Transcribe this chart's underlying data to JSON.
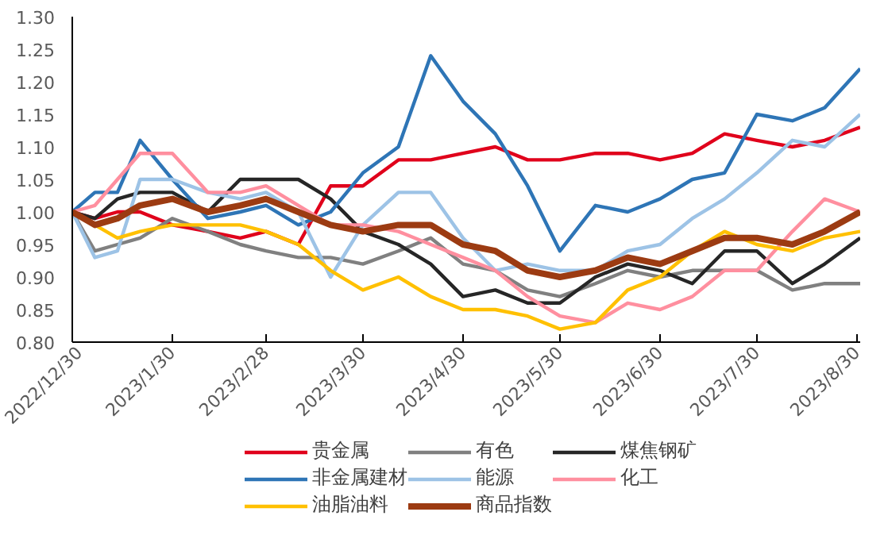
{
  "chart_data": {
    "type": "line",
    "x": [
      "2022-12-30",
      "2023-01-06",
      "2023-01-13",
      "2023-01-20",
      "2023-01-30",
      "2023-02-10",
      "2023-02-20",
      "2023-02-28",
      "2023-03-10",
      "2023-03-20",
      "2023-03-30",
      "2023-04-10",
      "2023-04-20",
      "2023-04-30",
      "2023-05-10",
      "2023-05-20",
      "2023-05-30",
      "2023-06-10",
      "2023-06-20",
      "2023-06-30",
      "2023-07-10",
      "2023-07-20",
      "2023-07-30",
      "2023-08-10",
      "2023-08-20",
      "2023-08-31"
    ],
    "series": [
      {
        "name": "贵金属",
        "color": "#e0001b",
        "values": [
          1.0,
          0.99,
          1.0,
          1.0,
          0.98,
          0.97,
          0.96,
          0.97,
          0.95,
          1.04,
          1.04,
          1.08,
          1.08,
          1.09,
          1.1,
          1.08,
          1.08,
          1.09,
          1.09,
          1.08,
          1.09,
          1.12,
          1.11,
          1.1,
          1.11,
          1.13
        ]
      },
      {
        "name": "有色",
        "color": "#808080",
        "values": [
          1.0,
          0.94,
          0.95,
          0.96,
          0.99,
          0.97,
          0.95,
          0.94,
          0.93,
          0.93,
          0.92,
          0.94,
          0.96,
          0.92,
          0.91,
          0.88,
          0.87,
          0.89,
          0.91,
          0.9,
          0.91,
          0.91,
          0.91,
          0.88,
          0.89,
          0.89
        ]
      },
      {
        "name": "煤焦钢矿",
        "color": "#262626",
        "values": [
          1.0,
          0.99,
          1.02,
          1.03,
          1.03,
          1.0,
          1.05,
          1.05,
          1.05,
          1.02,
          0.97,
          0.95,
          0.92,
          0.87,
          0.88,
          0.86,
          0.86,
          0.9,
          0.92,
          0.91,
          0.89,
          0.94,
          0.94,
          0.89,
          0.92,
          0.96
        ]
      },
      {
        "name": "非金属建材",
        "color": "#2e75b6",
        "values": [
          1.0,
          1.03,
          1.03,
          1.11,
          1.05,
          0.99,
          1.0,
          1.01,
          0.98,
          1.0,
          1.06,
          1.1,
          1.24,
          1.17,
          1.12,
          1.04,
          0.94,
          1.01,
          1.0,
          1.02,
          1.05,
          1.06,
          1.15,
          1.14,
          1.16,
          1.22
        ]
      },
      {
        "name": "能源",
        "color": "#9dc3e6",
        "values": [
          1.0,
          0.93,
          0.94,
          1.05,
          1.05,
          1.03,
          1.02,
          1.03,
          1.0,
          0.9,
          0.98,
          1.03,
          1.03,
          0.96,
          0.91,
          0.92,
          0.91,
          0.91,
          0.94,
          0.95,
          0.99,
          1.02,
          1.06,
          1.11,
          1.1,
          1.15
        ]
      },
      {
        "name": "化工",
        "color": "#ff8f9f",
        "values": [
          1.0,
          1.01,
          1.05,
          1.09,
          1.09,
          1.03,
          1.03,
          1.04,
          1.01,
          0.98,
          0.98,
          0.97,
          0.95,
          0.93,
          0.91,
          0.87,
          0.84,
          0.83,
          0.86,
          0.85,
          0.87,
          0.91,
          0.91,
          0.97,
          1.02,
          1.0
        ]
      },
      {
        "name": "油脂油料",
        "color": "#ffc000",
        "values": [
          1.0,
          0.98,
          0.96,
          0.97,
          0.98,
          0.98,
          0.98,
          0.97,
          0.95,
          0.91,
          0.88,
          0.9,
          0.87,
          0.85,
          0.85,
          0.84,
          0.82,
          0.83,
          0.88,
          0.9,
          0.94,
          0.97,
          0.95,
          0.94,
          0.96,
          0.97
        ]
      },
      {
        "name": "商品指数",
        "color": "#9c3b12",
        "values": [
          1.0,
          0.98,
          0.99,
          1.01,
          1.02,
          1.0,
          1.01,
          1.02,
          1.0,
          0.98,
          0.97,
          0.98,
          0.98,
          0.95,
          0.94,
          0.91,
          0.9,
          0.91,
          0.93,
          0.92,
          0.94,
          0.96,
          0.96,
          0.95,
          0.97,
          1.0
        ]
      }
    ],
    "xlim": [
      "2022-12-30",
      "2023-08-31"
    ],
    "xticks": [
      {
        "value": "2022-12-30",
        "label": "2022/12/30"
      },
      {
        "value": "2023-01-30",
        "label": "2023/1/30"
      },
      {
        "value": "2023-02-28",
        "label": "2023/2/28"
      },
      {
        "value": "2023-03-30",
        "label": "2023/3/30"
      },
      {
        "value": "2023-04-30",
        "label": "2023/4/30"
      },
      {
        "value": "2023-05-30",
        "label": "2023/5/30"
      },
      {
        "value": "2023-06-30",
        "label": "2023/6/30"
      },
      {
        "value": "2023-07-30",
        "label": "2023/7/30"
      },
      {
        "value": "2023-08-30",
        "label": "2023/8/30"
      }
    ],
    "ylim": [
      0.8,
      1.3
    ],
    "yticks": [
      {
        "value": 0.8,
        "label": "0.80"
      },
      {
        "value": 0.85,
        "label": "0.85"
      },
      {
        "value": 0.9,
        "label": "0.90"
      },
      {
        "value": 0.95,
        "label": "0.95"
      },
      {
        "value": 1.0,
        "label": "1.00"
      },
      {
        "value": 1.05,
        "label": "1.05"
      },
      {
        "value": 1.1,
        "label": "1.10"
      },
      {
        "value": 1.15,
        "label": "1.15"
      },
      {
        "value": 1.2,
        "label": "1.20"
      },
      {
        "value": 1.25,
        "label": "1.25"
      },
      {
        "value": 1.3,
        "label": "1.30"
      }
    ],
    "grid": false,
    "legend": "bottom",
    "line_style": "solid",
    "marker": "none"
  }
}
